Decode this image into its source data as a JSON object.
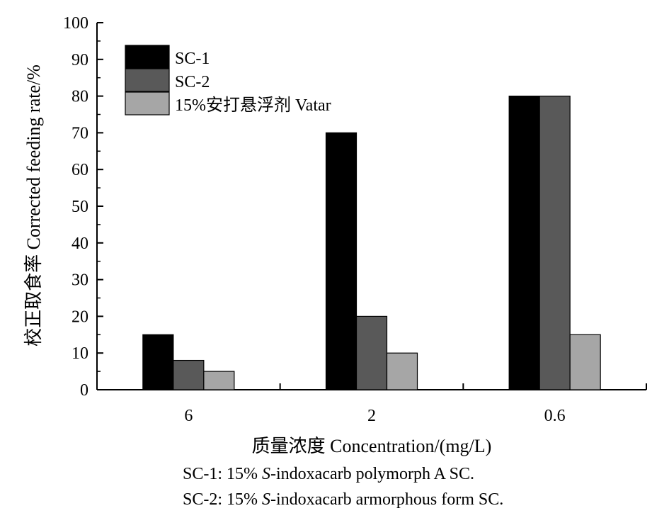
{
  "chart_data": {
    "type": "bar",
    "categories": [
      "6",
      "2",
      "0.6"
    ],
    "series": [
      {
        "name": "SC-1",
        "color": "#000000",
        "values": [
          15,
          70,
          80
        ]
      },
      {
        "name": "SC-2",
        "color": "#595959",
        "values": [
          8,
          20,
          80
        ]
      },
      {
        "name": "15%安打悬浮剂 Vatar",
        "color": "#a6a6a6",
        "values": [
          5,
          10,
          15
        ]
      }
    ],
    "ylabel": "校正取食率 Corrected feeding rate/%",
    "xlabel": "质量浓度 Concentration/(mg/L)",
    "ylim": [
      0,
      100
    ],
    "yticks": [
      0,
      10,
      20,
      30,
      40,
      50,
      60,
      70,
      80,
      90,
      100
    ],
    "grid": false,
    "legend_position": "top-left"
  },
  "notes": {
    "sc1_prefix": "SC-1: 15% ",
    "sc1_italic": "S",
    "sc1_rest": "-indoxacarb polymorph A SC.",
    "sc2_prefix": "SC-2: 15% ",
    "sc2_italic": "S",
    "sc2_rest": "-indoxacarb armorphous form SC."
  }
}
